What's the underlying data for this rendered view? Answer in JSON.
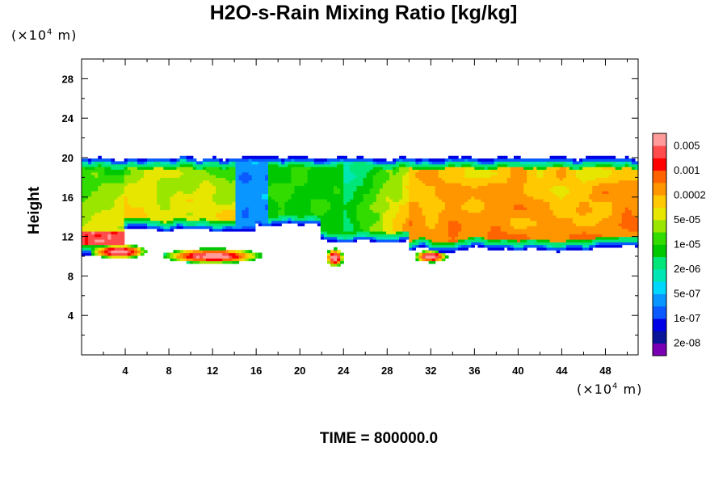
{
  "chart_data": {
    "type": "heatmap",
    "title": "H2O-s-Rain Mixing Ratio [kg/kg]",
    "ylabel": "Height",
    "xlabel": "",
    "x_unit": "(×10⁴ m)",
    "y_unit": "(×10⁴ m)",
    "xlim": [
      0,
      51
    ],
    "ylim": [
      0,
      30
    ],
    "xticks": [
      4,
      8,
      12,
      16,
      20,
      24,
      28,
      32,
      36,
      40,
      44,
      48
    ],
    "yticks": [
      4,
      8,
      12,
      16,
      20,
      24,
      28
    ],
    "colorbar": {
      "colors": [
        "#7a00b4",
        "#0a1496",
        "#0000e6",
        "#0a5aff",
        "#0a96ff",
        "#00d7ff",
        "#00e6b4",
        "#00e678",
        "#00c800",
        "#32dc00",
        "#9be600",
        "#e6e600",
        "#ffc800",
        "#ff9600",
        "#ff6400",
        "#ff0000",
        "#ff4b4b",
        "#ff9b9b"
      ],
      "labels": [
        "2e-08",
        "1e-07",
        "5e-07",
        "2e-06",
        "1e-05",
        "5e-05",
        "0.0002",
        "0.001",
        "0.005"
      ]
    },
    "upper_layer_top_km": 200,
    "upper_layer_base_km": 120,
    "notes_regions": [
      {
        "name": "main-cloud",
        "x": [
          0,
          51
        ],
        "y": [
          10,
          20.5
        ]
      },
      {
        "name": "lower-patches",
        "x": [
          0.5,
          16.5
        ],
        "y": [
          9.3,
          11
        ]
      }
    ]
  },
  "time_label": "TIME = 800000.0"
}
